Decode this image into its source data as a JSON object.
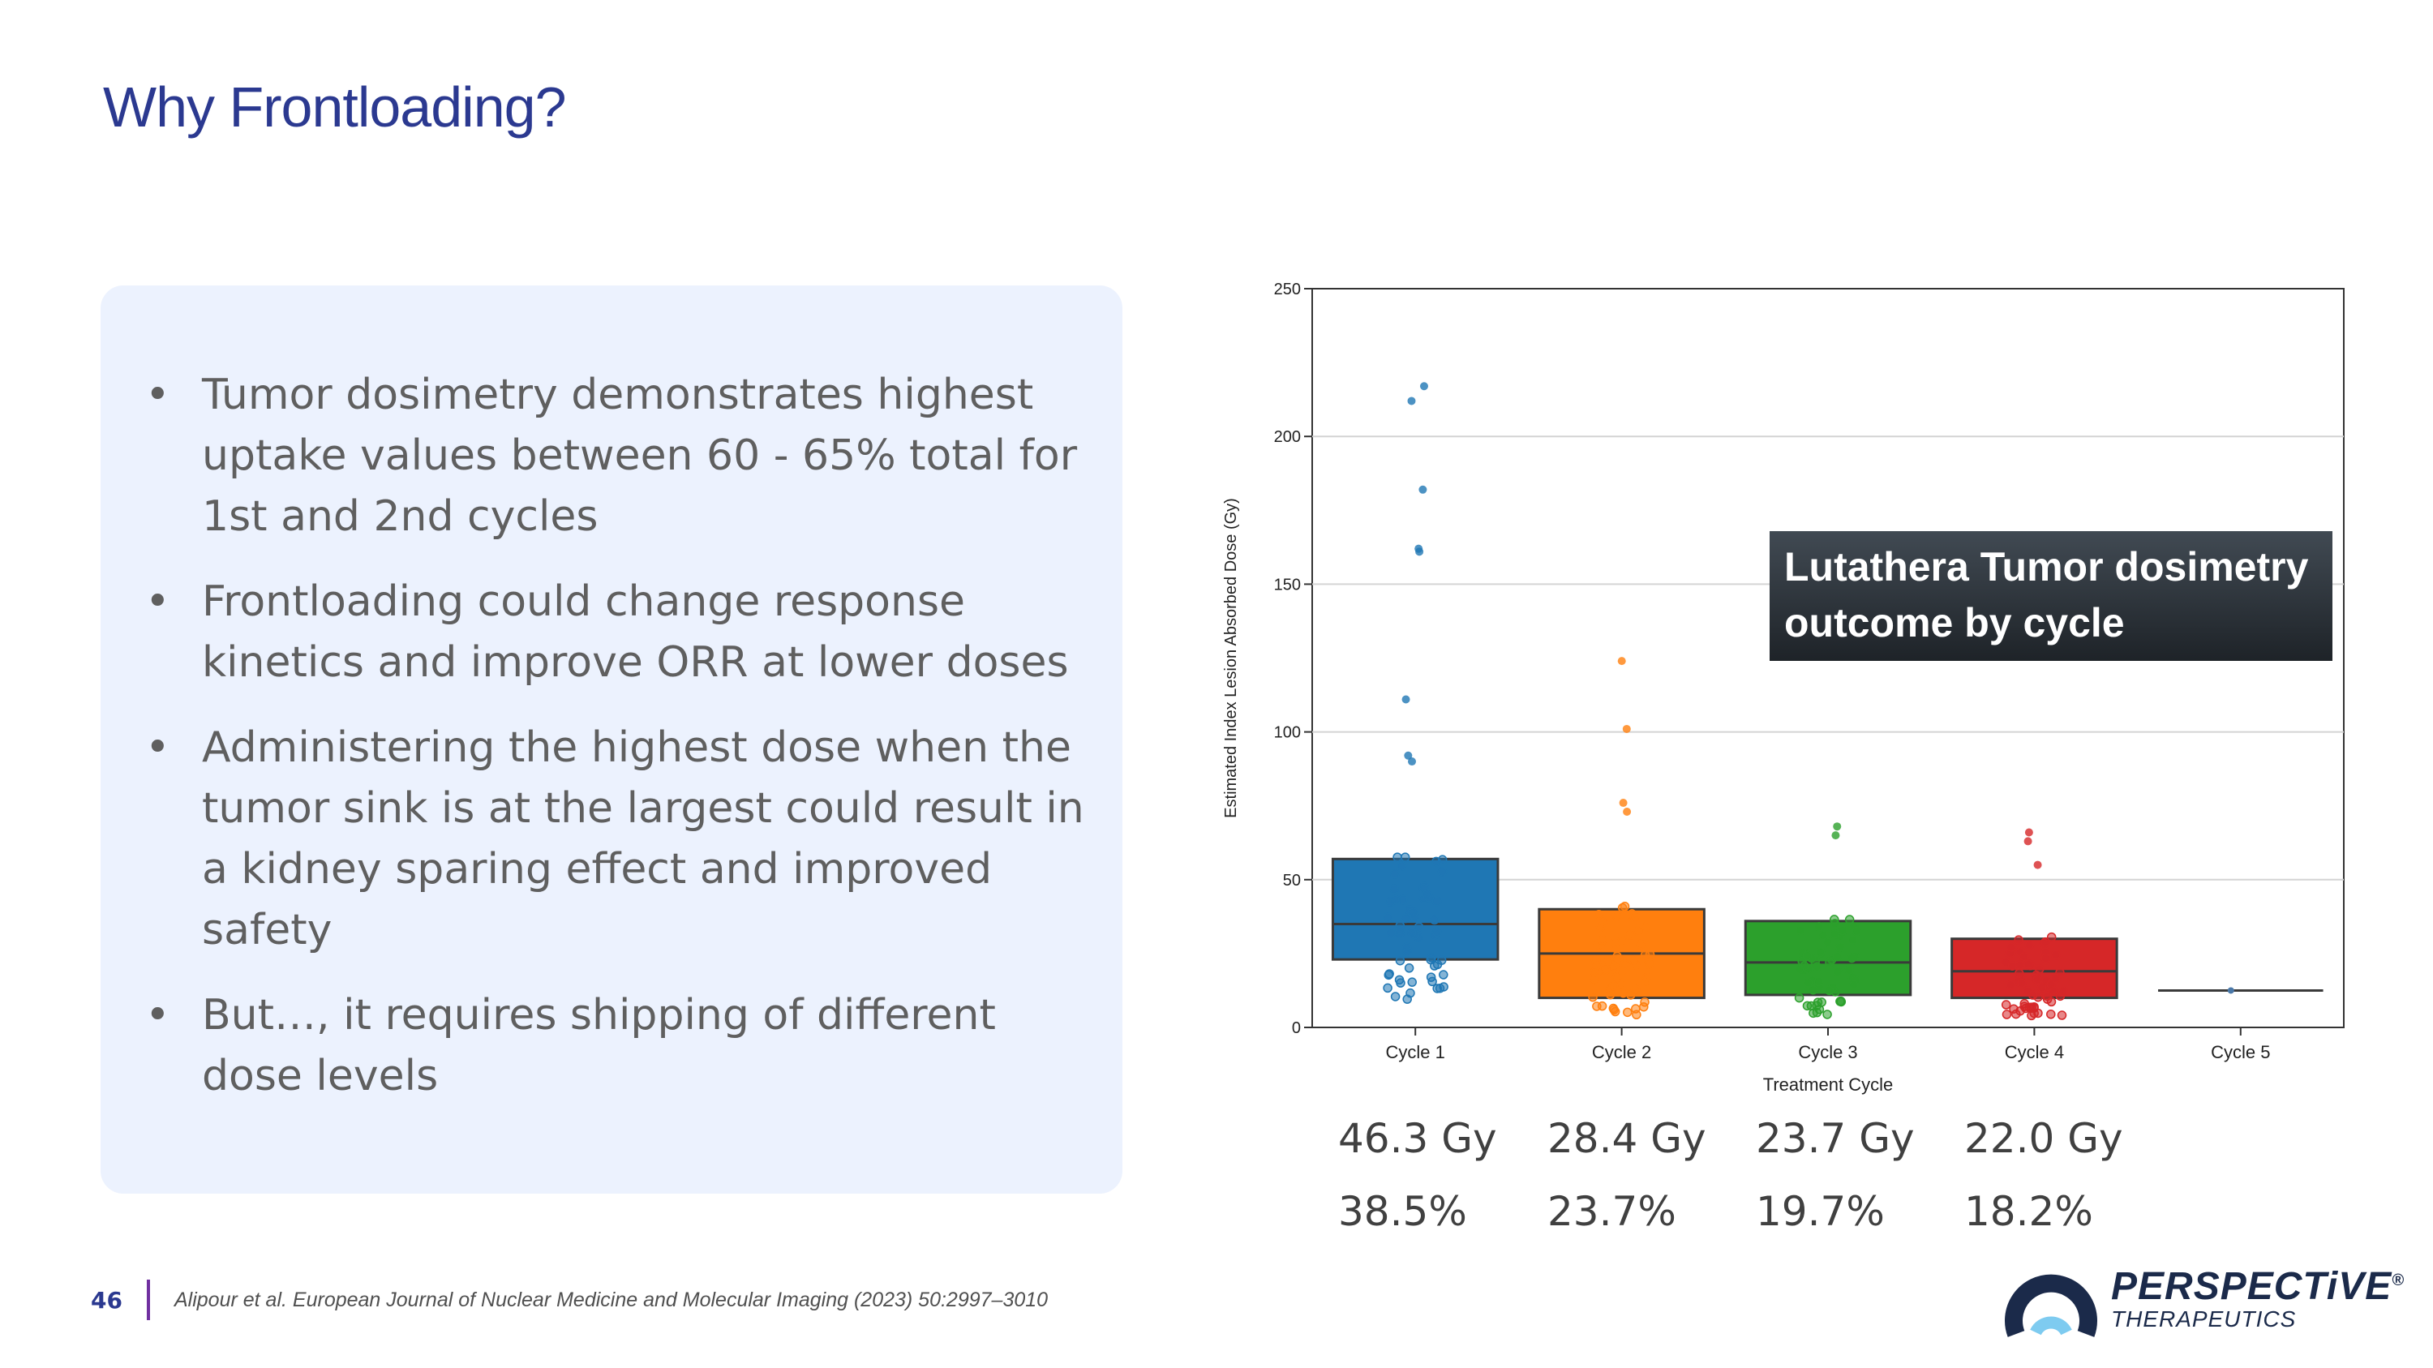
{
  "slide": {
    "title": "Why Frontloading?",
    "page_number": "46",
    "citation": "Alipour et al. European Journal of Nuclear Medicine and Molecular Imaging (2023) 50:2997–3010"
  },
  "bullets": [
    {
      "text": "Tumor dosimetry demonstrates highest uptake values between 60 - 65% total for 1st and 2nd cycles"
    },
    {
      "text": "Frontloading could change response kinetics and improve ORR at lower doses"
    },
    {
      "text": "Administering the highest dose when the tumor sink is at the largest could result in a kidney sparing effect and improved safety"
    },
    {
      "text": "But…, it requires shipping of different dose levels"
    }
  ],
  "bullet_glyph": "•",
  "callout": "Lutathera Tumor dosimetry outcome by cycle",
  "summary": {
    "gy": [
      "46.3 Gy",
      "28.4 Gy",
      "23.7 Gy",
      "22.0 Gy"
    ],
    "pct": [
      "38.5%",
      "23.7%",
      "19.7%",
      "18.2%"
    ]
  },
  "logo": {
    "name": "PERSPECTiVE",
    "sub": "THERAPEUTICS",
    "registered": "®"
  },
  "colors": {
    "title": "#2b3990",
    "panel": "#ecf2fe",
    "text": "#5f5f5f",
    "cycle1": "#1f77b4",
    "cycle2": "#ff7f0e",
    "cycle3": "#2ca02c",
    "cycle4": "#d62728",
    "cycle5": "#4a78a8",
    "logo_mark": "#1b2a4a",
    "logo_accent": "#7ecbf0"
  },
  "chart_data": {
    "type": "box",
    "xlabel": "Treatment Cycle",
    "ylabel": "Estimated Index Lesion Absorbed Dose (Gy)",
    "ylim": [
      0,
      250
    ],
    "yticks": [
      0,
      50,
      100,
      150,
      200,
      250
    ],
    "grid": "horizontal",
    "categories": [
      "Cycle 1",
      "Cycle 2",
      "Cycle 3",
      "Cycle 4",
      "Cycle 5"
    ],
    "boxes": [
      {
        "category": "Cycle 1",
        "q1": 23,
        "median": 35,
        "q3": 57,
        "color": "#1f77b4"
      },
      {
        "category": "Cycle 2",
        "q1": 10,
        "median": 25,
        "q3": 40,
        "color": "#ff7f0e"
      },
      {
        "category": "Cycle 3",
        "q1": 11,
        "median": 22,
        "q3": 36,
        "color": "#2ca02c"
      },
      {
        "category": "Cycle 4",
        "q1": 10,
        "median": 19,
        "q3": 30,
        "color": "#d62728"
      },
      {
        "category": "Cycle 5",
        "q1": 12.5,
        "median": 12.5,
        "q3": 12.5,
        "color": "#4a78a8"
      }
    ],
    "outliers": [
      {
        "category": "Cycle 1",
        "values": [
          217,
          212,
          182,
          162,
          161,
          111,
          92,
          90
        ]
      },
      {
        "category": "Cycle 2",
        "values": [
          124,
          101,
          76,
          73
        ]
      },
      {
        "category": "Cycle 3",
        "values": [
          68,
          65
        ]
      },
      {
        "category": "Cycle 4",
        "values": [
          66,
          63,
          55
        ]
      }
    ]
  }
}
